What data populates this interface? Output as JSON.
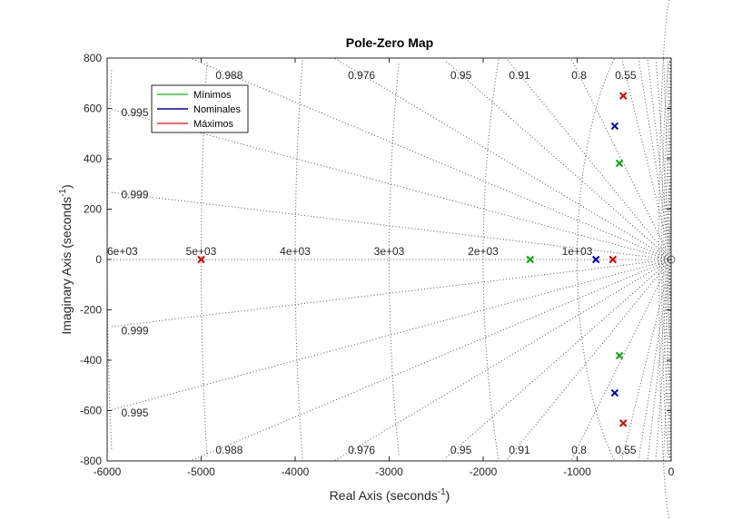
{
  "chart_data": {
    "type": "scatter",
    "title": "Pole-Zero Map",
    "xlabel": "Real Axis (seconds",
    "xlabel_sup": "-1",
    "xlabel_end": ")",
    "ylabel": "Imaginary Axis (seconds",
    "ylabel_sup": "-1",
    "ylabel_end": ")",
    "xlim": [
      -6000,
      0
    ],
    "ylim": [
      -800,
      800
    ],
    "xticks": [
      -6000,
      -5000,
      -4000,
      -3000,
      -2000,
      -1000,
      0
    ],
    "xtick_labels": [
      "-6000",
      "-5000",
      "-4000",
      "-3000",
      "-2000",
      "-1000",
      "0"
    ],
    "yticks": [
      800,
      600,
      400,
      200,
      0,
      -200,
      -400,
      -600,
      -800
    ],
    "ytick_labels": [
      "800",
      "600",
      "400",
      "200",
      "0",
      "-200",
      "-400",
      "-600",
      "-800"
    ],
    "legend_position": "top-left",
    "series": [
      {
        "name": "Mínimos",
        "color": "#00aa00",
        "marker": "x",
        "points": [
          [
            -1500,
            0
          ],
          [
            -550,
            382
          ],
          [
            -550,
            -382
          ]
        ]
      },
      {
        "name": "Nominales",
        "color": "#0000cc",
        "marker": "x",
        "points": [
          [
            -800,
            0
          ],
          [
            -600,
            530
          ],
          [
            -600,
            -530
          ]
        ]
      },
      {
        "name": "Máximos",
        "color": "#dd0000",
        "marker": "x",
        "points": [
          [
            -5000,
            0
          ],
          [
            -620,
            0
          ],
          [
            -510,
            650
          ],
          [
            -510,
            -650
          ]
        ]
      }
    ],
    "grid": {
      "damping": [
        {
          "zeta": 0.988,
          "label": "0.988"
        },
        {
          "zeta": 0.976,
          "label": "0.976"
        },
        {
          "zeta": 0.95,
          "label": "0.95"
        },
        {
          "zeta": 0.91,
          "label": "0.91"
        },
        {
          "zeta": 0.8,
          "label": "0.8"
        },
        {
          "zeta": 0.55,
          "label": "0.55"
        },
        {
          "zeta": 0.995,
          "label": "0.995"
        },
        {
          "zeta": 0.999,
          "label": "0.999"
        }
      ],
      "frequency": [
        {
          "wn": 6000,
          "label": "6e+03"
        },
        {
          "wn": 5000,
          "label": "5e+03"
        },
        {
          "wn": 4000,
          "label": "4e+03"
        },
        {
          "wn": 3000,
          "label": "3e+03"
        },
        {
          "wn": 2000,
          "label": "2e+03"
        },
        {
          "wn": 1000,
          "label": "1e+03"
        }
      ]
    }
  }
}
